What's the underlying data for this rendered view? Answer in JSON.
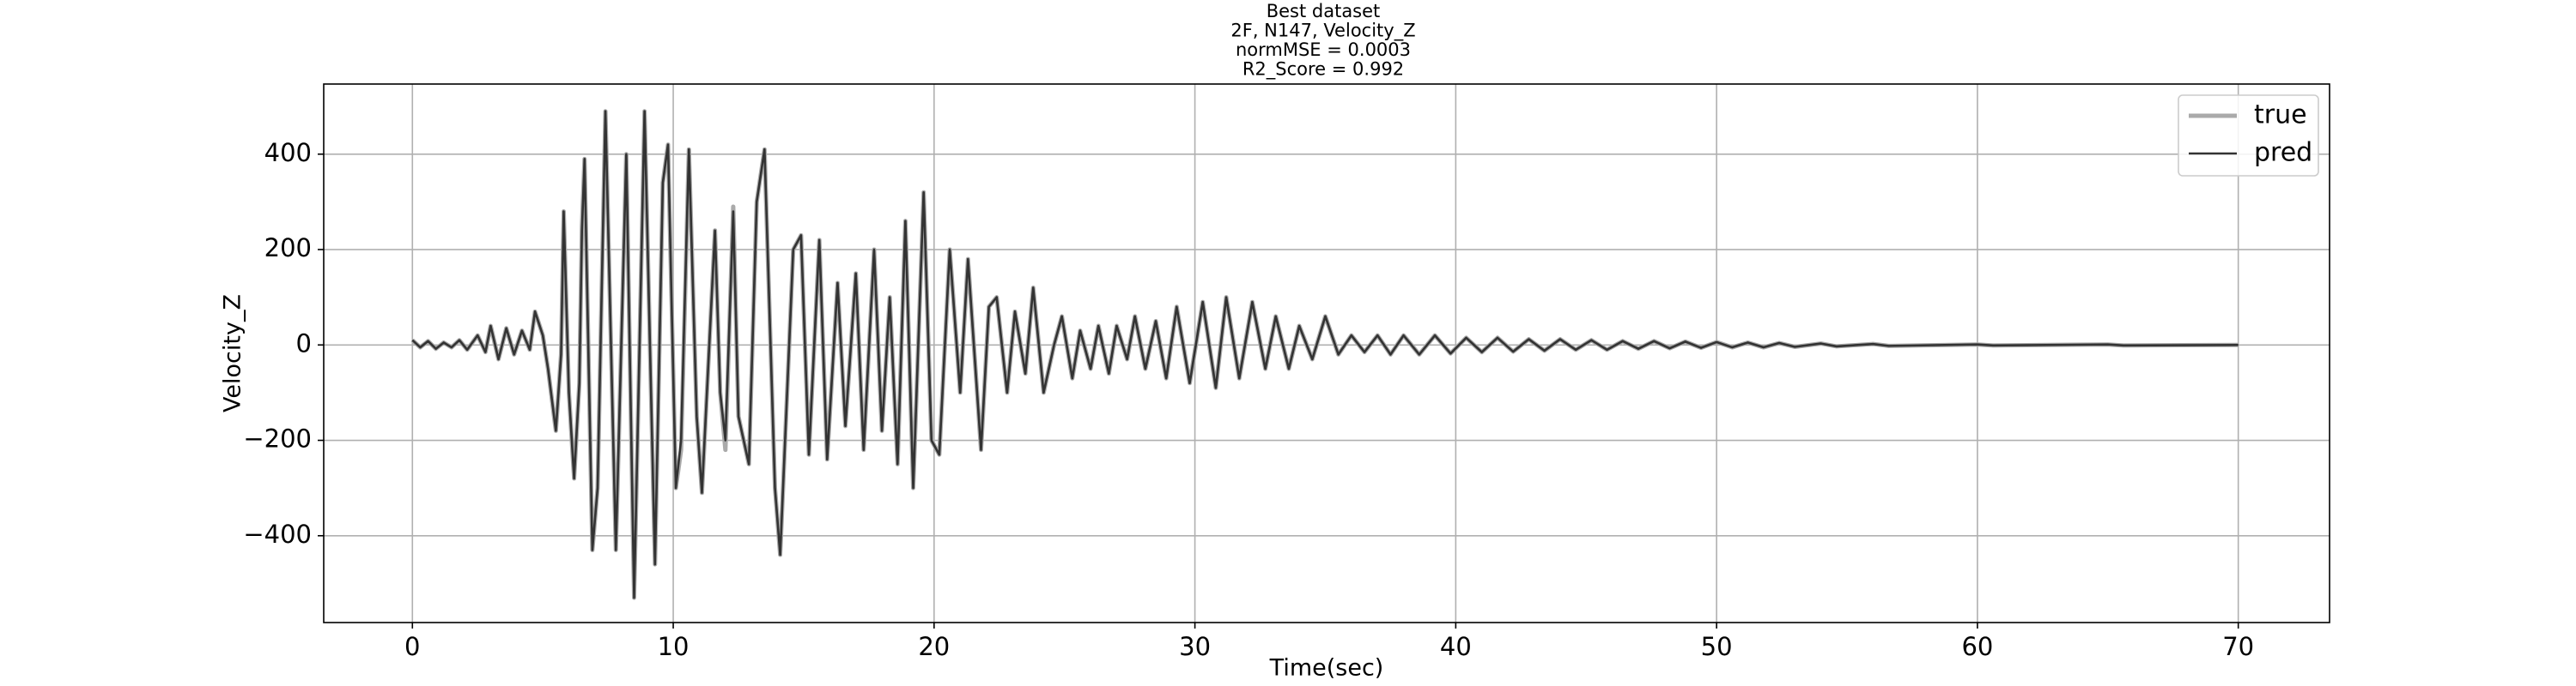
{
  "chart_data": {
    "type": "line",
    "title": [
      "Best dataset",
      "2F, N147, Velocity_Z",
      "normMSE = 0.0003",
      "R2_Score = 0.992"
    ],
    "x_label": "Time(sec)",
    "y_label": "Velocity_Z",
    "x": [
      0,
      0.3,
      0.6,
      0.9,
      1.2,
      1.5,
      1.8,
      2.1,
      2.5,
      2.8,
      3.0,
      3.3,
      3.6,
      3.9,
      4.2,
      4.5,
      4.7,
      5.0,
      5.2,
      5.5,
      5.7,
      5.8,
      6.0,
      6.2,
      6.4,
      6.5,
      6.6,
      6.9,
      7.1,
      7.4,
      7.8,
      8.2,
      8.5,
      8.9,
      9.3,
      9.6,
      9.8,
      10.1,
      10.3,
      10.6,
      10.9,
      11.1,
      11.6,
      11.8,
      12.0,
      12.3,
      12.5,
      12.9,
      13.2,
      13.5,
      13.9,
      14.1,
      14.6,
      14.9,
      15.2,
      15.6,
      15.9,
      16.3,
      16.6,
      17.0,
      17.3,
      17.7,
      18.0,
      18.3,
      18.6,
      18.9,
      19.2,
      19.6,
      19.9,
      20.2,
      20.6,
      21.0,
      21.3,
      21.8,
      22.1,
      22.4,
      22.8,
      23.1,
      23.5,
      23.8,
      24.2,
      24.6,
      24.9,
      25.3,
      25.6,
      26.0,
      26.3,
      26.7,
      27.0,
      27.4,
      27.7,
      28.1,
      28.5,
      28.9,
      29.3,
      29.8,
      30.3,
      30.8,
      31.2,
      31.7,
      32.2,
      32.7,
      33.1,
      33.6,
      34.0,
      34.5,
      35.0,
      35.5,
      36.0,
      36.5,
      37.0,
      37.5,
      38.0,
      38.6,
      39.2,
      39.8,
      40.4,
      41.0,
      41.6,
      42.2,
      42.8,
      43.4,
      44.0,
      44.6,
      45.2,
      45.8,
      46.4,
      47.0,
      47.6,
      48.2,
      48.8,
      49.4,
      50.0,
      50.6,
      51.2,
      51.8,
      52.4,
      53.0,
      54.0,
      54.6,
      56.0,
      56.6,
      60.0,
      60.6,
      65.0,
      65.6,
      70.0
    ],
    "series": [
      {
        "name": "true",
        "color": "#aaaaaa",
        "values": [
          10,
          -5,
          8,
          -8,
          5,
          -5,
          10,
          -10,
          20,
          -15,
          40,
          -30,
          35,
          -20,
          30,
          -10,
          70,
          20,
          -50,
          -180,
          -20,
          280,
          -100,
          -280,
          -80,
          250,
          390,
          -430,
          -300,
          490,
          -430,
          400,
          -530,
          490,
          -460,
          340,
          420,
          -300,
          -220,
          410,
          -150,
          -310,
          240,
          -100,
          -220,
          290,
          -150,
          -250,
          300,
          410,
          -300,
          -440,
          200,
          230,
          -230,
          220,
          -240,
          130,
          -170,
          150,
          -220,
          200,
          -180,
          100,
          -250,
          260,
          -300,
          320,
          -200,
          -230,
          200,
          -100,
          180,
          -220,
          80,
          100,
          -100,
          70,
          -60,
          120,
          -100,
          0,
          60,
          -70,
          30,
          -50,
          40,
          -60,
          40,
          -30,
          60,
          -50,
          50,
          -70,
          80,
          -80,
          90,
          -90,
          100,
          -70,
          90,
          -50,
          60,
          -50,
          40,
          -30,
          60,
          -20,
          20,
          -15,
          20,
          -20,
          20,
          -20,
          20,
          -18,
          15,
          -15,
          15,
          -14,
          12,
          -12,
          12,
          -10,
          10,
          -10,
          8,
          -8,
          8,
          -7,
          7,
          -6,
          6,
          -5,
          5,
          -5,
          4,
          -4,
          3,
          -3,
          2,
          -2,
          1,
          -1,
          1,
          -1,
          0
        ]
      },
      {
        "name": "pred",
        "color": "#333333",
        "values": [
          10,
          -5,
          8,
          -8,
          5,
          -5,
          10,
          -10,
          20,
          -15,
          40,
          -30,
          35,
          -20,
          30,
          -10,
          70,
          20,
          -50,
          -180,
          -20,
          280,
          -100,
          -280,
          -80,
          240,
          390,
          -430,
          -300,
          490,
          -430,
          400,
          -530,
          490,
          -460,
          340,
          420,
          -300,
          -200,
          410,
          -150,
          -310,
          240,
          -100,
          -200,
          280,
          -150,
          -250,
          300,
          410,
          -300,
          -440,
          200,
          230,
          -230,
          220,
          -240,
          130,
          -170,
          150,
          -220,
          200,
          -180,
          100,
          -250,
          260,
          -300,
          320,
          -200,
          -230,
          200,
          -100,
          180,
          -220,
          80,
          100,
          -100,
          70,
          -60,
          120,
          -100,
          0,
          60,
          -70,
          30,
          -50,
          40,
          -60,
          40,
          -30,
          60,
          -50,
          50,
          -70,
          80,
          -80,
          90,
          -90,
          100,
          -70,
          90,
          -50,
          60,
          -50,
          40,
          -30,
          60,
          -20,
          20,
          -15,
          20,
          -20,
          20,
          -20,
          20,
          -18,
          15,
          -15,
          15,
          -14,
          12,
          -12,
          12,
          -10,
          10,
          -10,
          8,
          -8,
          8,
          -7,
          7,
          -6,
          6,
          -5,
          5,
          -5,
          4,
          -4,
          3,
          -3,
          2,
          -2,
          1,
          -1,
          1,
          -1,
          0
        ]
      }
    ],
    "xlim": [
      -3.4,
      73.5
    ],
    "ylim": [
      -582,
      547
    ],
    "xticks": [
      0,
      10,
      20,
      30,
      40,
      50,
      60,
      70
    ],
    "yticks": [
      {
        "value": -400,
        "label": "−400"
      },
      {
        "value": -200,
        "label": "−200"
      },
      0,
      200,
      400
    ],
    "grid": true,
    "legend_loc": "upper right"
  }
}
